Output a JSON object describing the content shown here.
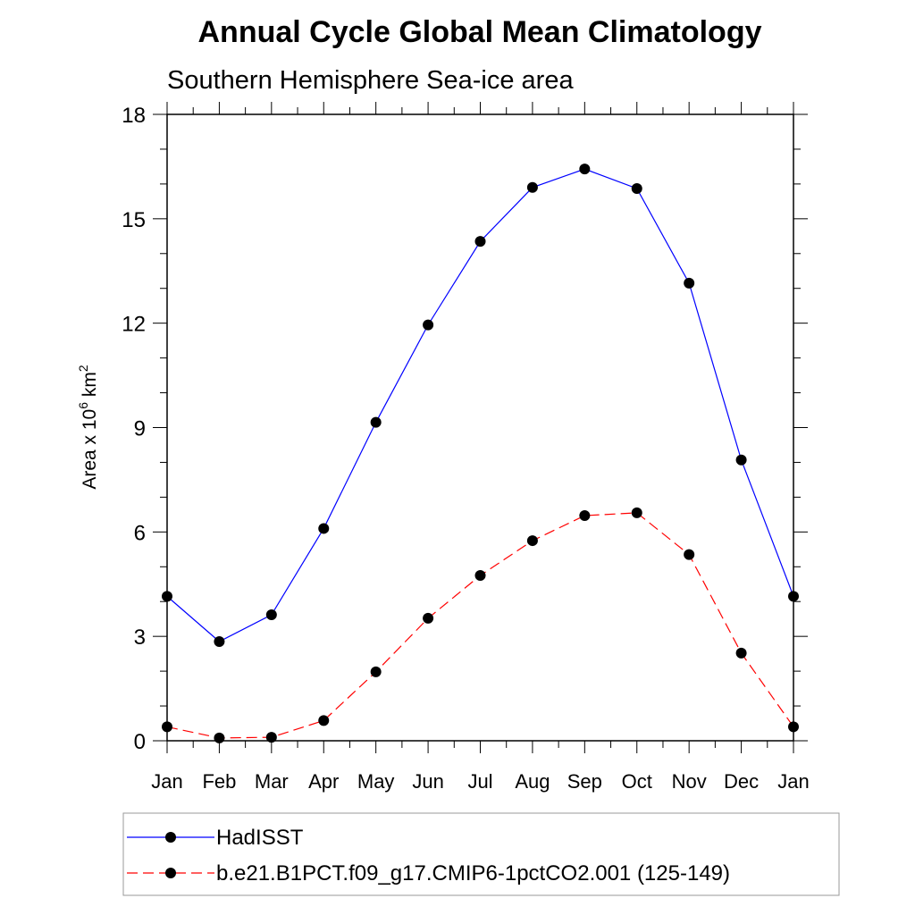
{
  "chart_data": {
    "type": "line",
    "title": "Annual Cycle Global Mean Climatology",
    "subtitle": "Southern Hemisphere Sea-ice area",
    "ylabel_prefix": "Area x 10",
    "ylabel_exponent": "6",
    "ylabel_unit": " km",
    "ylabel_unit_exponent": "2",
    "xlabel": "",
    "categories": [
      "Jan",
      "Feb",
      "Mar",
      "Apr",
      "May",
      "Jun",
      "Jul",
      "Aug",
      "Sep",
      "Oct",
      "Nov",
      "Dec",
      "Jan"
    ],
    "ylim": [
      0,
      18
    ],
    "yticks": [
      0,
      3,
      6,
      9,
      12,
      15,
      18
    ],
    "y_minor_step": 1,
    "grid": false,
    "legend_position": "bottom",
    "series": [
      {
        "name": "HadISST",
        "color": "#0000ff",
        "dash": "solid",
        "marker": "circle",
        "values": [
          4.15,
          2.85,
          3.62,
          6.1,
          9.15,
          11.95,
          14.35,
          15.9,
          16.43,
          15.87,
          13.15,
          8.07,
          4.15
        ]
      },
      {
        "name": "b.e21.B1PCT.f09_g17.CMIP6-1pctCO2.001 (125-149)",
        "color": "#ff0000",
        "dash": "dashed",
        "marker": "circle",
        "values": [
          0.4,
          0.08,
          0.1,
          0.58,
          1.98,
          3.52,
          4.75,
          5.75,
          6.47,
          6.55,
          5.35,
          2.52,
          0.4
        ]
      }
    ],
    "marker_color": "#000000"
  }
}
